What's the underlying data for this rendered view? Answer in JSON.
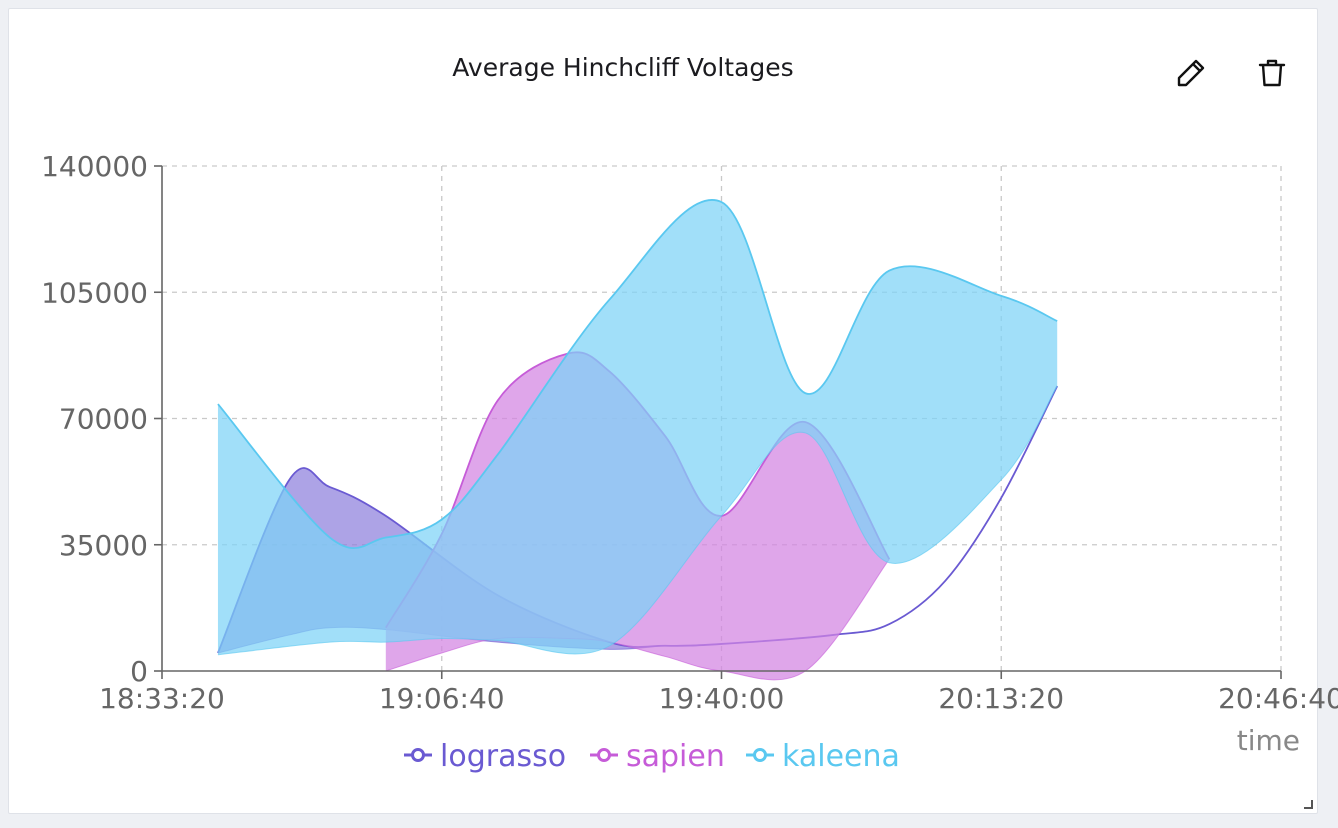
{
  "panel": {
    "title": "Average Hinchcliff Voltages",
    "edit_icon": "pencil-icon",
    "delete_icon": "trash-icon"
  },
  "chart_data": {
    "type": "area",
    "title": "Average Hinchcliff Voltages",
    "xlabel": "time",
    "ylabel": "",
    "x_ticks": [
      "18:33:20",
      "19:06:40",
      "19:40:00",
      "20:13:20",
      "20:46:40"
    ],
    "y_ticks": [
      "0",
      "35000",
      "70000",
      "105000",
      "140000"
    ],
    "xlim": [
      "18:33:20",
      "20:46:40"
    ],
    "ylim": [
      0,
      140000
    ],
    "grid": true,
    "legend": "bottom-center",
    "series": [
      {
        "name": "lograsso",
        "color": "#6a5ad2",
        "fill": "#8d7fdc",
        "points": [
          [
            "18:40:00",
            5000,
            5000
          ],
          [
            "18:48:30",
            53000,
            10000
          ],
          [
            "18:53:20",
            51000,
            12000
          ],
          [
            "19:00:00",
            43000,
            11500
          ],
          [
            "19:13:20",
            21000,
            8000
          ],
          [
            "19:26:40",
            8000,
            6000
          ],
          [
            "19:33:20",
            7000,
            7000
          ],
          [
            "19:40:00",
            7500,
            7500
          ],
          [
            "19:53:20",
            10000,
            10000
          ],
          [
            "20:00:00",
            13000,
            13000
          ],
          [
            "20:06:40",
            25000,
            25000
          ],
          [
            "20:13:20",
            48000,
            48000
          ],
          [
            "20:20:00",
            79000,
            79000
          ]
        ]
      },
      {
        "name": "sapien",
        "color": "#c65cd8",
        "fill": "#d283e2",
        "points": [
          [
            "19:00:00",
            12000,
            0
          ],
          [
            "19:06:40",
            38000,
            5000
          ],
          [
            "19:13:20",
            75000,
            9000
          ],
          [
            "19:21:40",
            88000,
            9000
          ],
          [
            "19:26:40",
            83000,
            8000
          ],
          [
            "19:33:20",
            65000,
            4000
          ],
          [
            "19:40:00",
            43000,
            0
          ],
          [
            "19:50:00",
            69000,
            0
          ],
          [
            "20:00:00",
            31000,
            31000
          ]
        ]
      },
      {
        "name": "kaleena",
        "color": "#5ac8f0",
        "fill": "#7dd3f7",
        "points": [
          [
            "18:40:00",
            74000,
            4500
          ],
          [
            "18:53:20",
            37000,
            8000
          ],
          [
            "19:00:00",
            37000,
            8000
          ],
          [
            "19:06:40",
            42000,
            9000
          ],
          [
            "19:13:20",
            60000,
            8500
          ],
          [
            "19:26:40",
            103000,
            7000
          ],
          [
            "19:40:00",
            130000,
            43000
          ],
          [
            "19:50:00",
            77000,
            66000
          ],
          [
            "20:00:00",
            111000,
            30000
          ],
          [
            "20:13:20",
            104000,
            53000
          ],
          [
            "20:20:00",
            97000,
            79000
          ]
        ]
      }
    ]
  }
}
